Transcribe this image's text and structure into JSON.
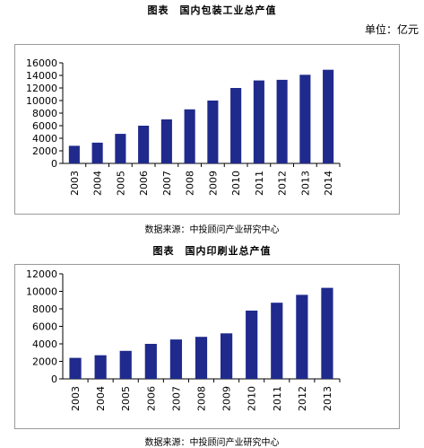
{
  "figures": [
    {
      "title": "图表　国内包装工业总产值",
      "unit": "单位：亿元",
      "source": "数据来源：中投顾问产业研究中心"
    },
    {
      "title": "图表　国内印刷业总产值",
      "source": "数据来源：中投顾问产业研究中心"
    }
  ],
  "colors": {
    "bar": "#1f2a8c",
    "axis": "#000000",
    "frame": "#9a9a9a"
  },
  "chart_data": [
    {
      "type": "bar",
      "title": "图表　国内包装工业总产值",
      "categories": [
        "2003",
        "2004",
        "2005",
        "2006",
        "2007",
        "2008",
        "2009",
        "2010",
        "2011",
        "2012",
        "2013",
        "2014"
      ],
      "values": [
        2800,
        3300,
        4700,
        6000,
        7000,
        8600,
        10000,
        12000,
        13200,
        13300,
        14100,
        14900
      ],
      "yticks": [
        "0",
        "2000",
        "4000",
        "6000",
        "8000",
        "10000",
        "12000",
        "14000",
        "16000"
      ],
      "ylim": [
        0,
        16000
      ],
      "xlabel": "",
      "ylabel": "",
      "grid": false
    },
    {
      "type": "bar",
      "title": "图表　国内印刷业总产值",
      "categories": [
        "2003",
        "2004",
        "2005",
        "2006",
        "2007",
        "2008",
        "2009",
        "2010",
        "2011",
        "2012",
        "2013"
      ],
      "values": [
        2400,
        2700,
        3200,
        4000,
        4500,
        4800,
        5200,
        7800,
        8700,
        9600,
        10400
      ],
      "yticks": [
        "0",
        "2000",
        "4000",
        "6000",
        "8000",
        "10000",
        "12000"
      ],
      "ylim": [
        0,
        12000
      ],
      "xlabel": "",
      "ylabel": "",
      "grid": false
    }
  ]
}
